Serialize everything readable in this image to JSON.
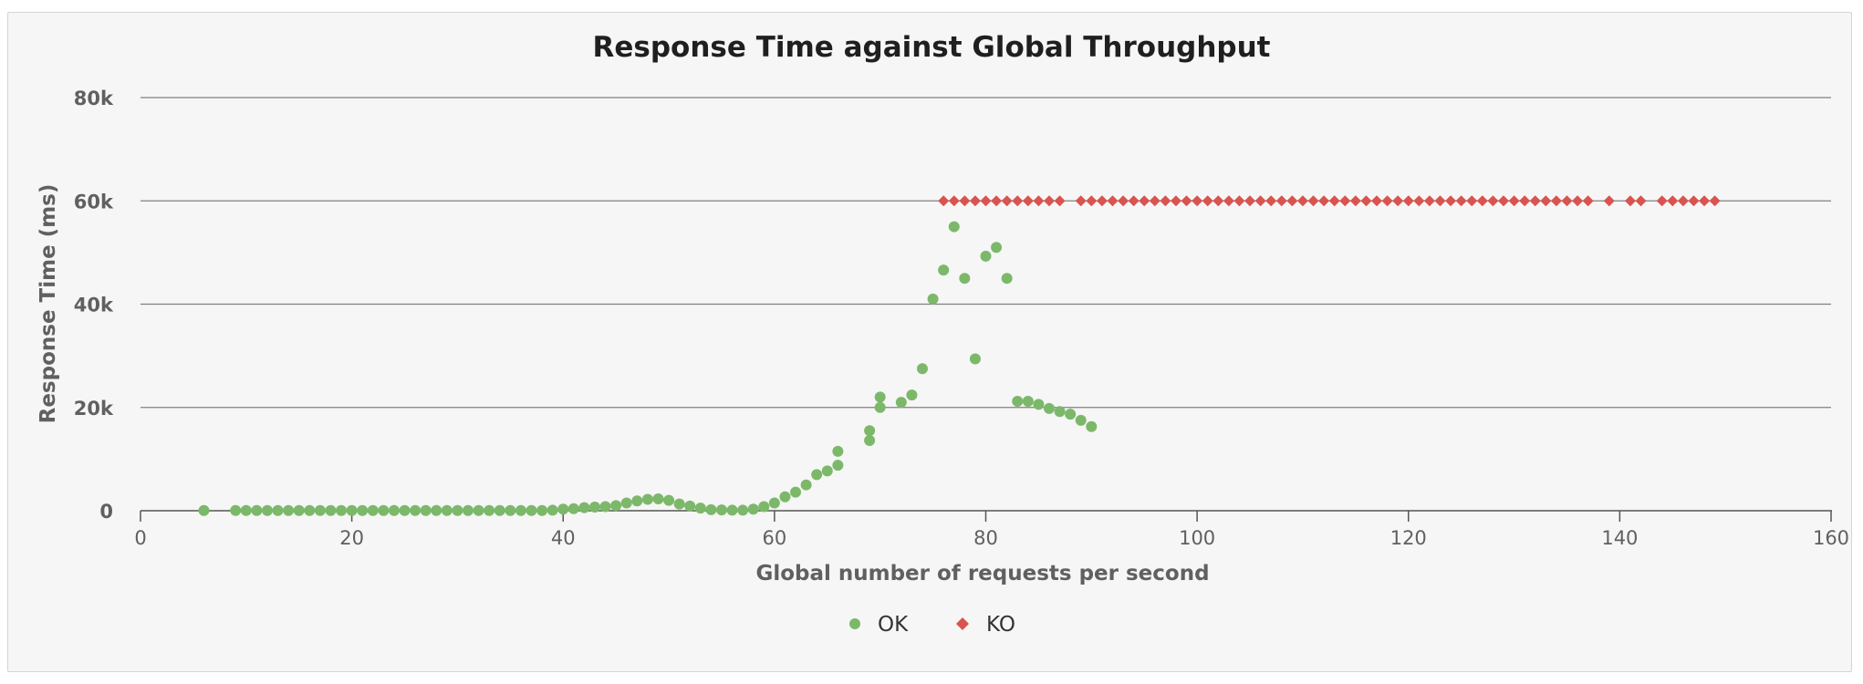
{
  "chart_data": {
    "type": "scatter",
    "title": "Response Time against Global Throughput",
    "xlabel": "Global number of requests per second",
    "ylabel": "Response Time (ms)",
    "xlim": [
      0,
      160
    ],
    "ylim": [
      0,
      80000
    ],
    "x_ticks": [
      0,
      20,
      40,
      60,
      80,
      100,
      120,
      140,
      160
    ],
    "x_tick_labels": [
      "0",
      "20",
      "40",
      "60",
      "80",
      "100",
      "120",
      "140",
      "160"
    ],
    "y_ticks": [
      0,
      20000,
      40000,
      60000,
      80000
    ],
    "y_tick_labels": [
      "0",
      "20k",
      "40k",
      "60k",
      "80k"
    ],
    "grid": "horizontal",
    "legend_position": "bottom-center",
    "colors": {
      "ok": "#7cb86a",
      "ko": "#d9534f",
      "grid": "#808080",
      "panel": "#f6f6f6"
    },
    "series": [
      {
        "name": "OK",
        "marker": "circle",
        "color": "#7cb86a",
        "points": [
          [
            6,
            50
          ],
          [
            9,
            50
          ],
          [
            10,
            50
          ],
          [
            11,
            50
          ],
          [
            12,
            50
          ],
          [
            13,
            50
          ],
          [
            14,
            50
          ],
          [
            15,
            50
          ],
          [
            16,
            50
          ],
          [
            17,
            50
          ],
          [
            18,
            50
          ],
          [
            19,
            50
          ],
          [
            20,
            50
          ],
          [
            21,
            50
          ],
          [
            22,
            50
          ],
          [
            23,
            50
          ],
          [
            24,
            50
          ],
          [
            25,
            50
          ],
          [
            26,
            50
          ],
          [
            27,
            50
          ],
          [
            28,
            50
          ],
          [
            29,
            50
          ],
          [
            30,
            50
          ],
          [
            31,
            50
          ],
          [
            32,
            50
          ],
          [
            33,
            50
          ],
          [
            34,
            50
          ],
          [
            35,
            50
          ],
          [
            36,
            50
          ],
          [
            37,
            50
          ],
          [
            38,
            50
          ],
          [
            39,
            100
          ],
          [
            40,
            300
          ],
          [
            41,
            400
          ],
          [
            42,
            600
          ],
          [
            43,
            700
          ],
          [
            44,
            800
          ],
          [
            45,
            1000
          ],
          [
            46,
            1500
          ],
          [
            47,
            1900
          ],
          [
            48,
            2200
          ],
          [
            49,
            2300
          ],
          [
            50,
            2000
          ],
          [
            51,
            1300
          ],
          [
            52,
            900
          ],
          [
            53,
            500
          ],
          [
            54,
            200
          ],
          [
            55,
            150
          ],
          [
            56,
            100
          ],
          [
            57,
            100
          ],
          [
            58,
            300
          ],
          [
            59,
            800
          ],
          [
            60,
            1500
          ],
          [
            61,
            2700
          ],
          [
            62,
            3600
          ],
          [
            63,
            5000
          ],
          [
            64,
            7000
          ],
          [
            65,
            7700
          ],
          [
            66,
            8800
          ],
          [
            66,
            11500
          ],
          [
            69,
            13600
          ],
          [
            69,
            15500
          ],
          [
            70,
            20000
          ],
          [
            70,
            22000
          ],
          [
            72,
            21000
          ],
          [
            73,
            22400
          ],
          [
            74,
            27500
          ],
          [
            75,
            41000
          ],
          [
            76,
            46600
          ],
          [
            77,
            55000
          ],
          [
            78,
            45000
          ],
          [
            79,
            29400
          ],
          [
            80,
            49300
          ],
          [
            81,
            51000
          ],
          [
            82,
            45000
          ],
          [
            83,
            21200
          ],
          [
            84,
            21200
          ],
          [
            85,
            20600
          ],
          [
            86,
            19800
          ],
          [
            87,
            19200
          ],
          [
            88,
            18700
          ],
          [
            89,
            17500
          ],
          [
            90,
            16300
          ]
        ]
      },
      {
        "name": "KO",
        "marker": "diamond",
        "color": "#d9534f",
        "points": [
          [
            76,
            60000
          ],
          [
            77,
            60000
          ],
          [
            78,
            60000
          ],
          [
            79,
            60000
          ],
          [
            80,
            60000
          ],
          [
            81,
            60000
          ],
          [
            82,
            60000
          ],
          [
            83,
            60000
          ],
          [
            84,
            60000
          ],
          [
            85,
            60000
          ],
          [
            86,
            60000
          ],
          [
            87,
            60000
          ],
          [
            89,
            60000
          ],
          [
            90,
            60000
          ],
          [
            91,
            60000
          ],
          [
            92,
            60000
          ],
          [
            93,
            60000
          ],
          [
            94,
            60000
          ],
          [
            95,
            60000
          ],
          [
            96,
            60000
          ],
          [
            97,
            60000
          ],
          [
            98,
            60000
          ],
          [
            99,
            60000
          ],
          [
            100,
            60000
          ],
          [
            101,
            60000
          ],
          [
            102,
            60000
          ],
          [
            103,
            60000
          ],
          [
            104,
            60000
          ],
          [
            105,
            60000
          ],
          [
            106,
            60000
          ],
          [
            107,
            60000
          ],
          [
            108,
            60000
          ],
          [
            109,
            60000
          ],
          [
            110,
            60000
          ],
          [
            111,
            60000
          ],
          [
            112,
            60000
          ],
          [
            113,
            60000
          ],
          [
            114,
            60000
          ],
          [
            115,
            60000
          ],
          [
            116,
            60000
          ],
          [
            117,
            60000
          ],
          [
            118,
            60000
          ],
          [
            119,
            60000
          ],
          [
            120,
            60000
          ],
          [
            121,
            60000
          ],
          [
            122,
            60000
          ],
          [
            123,
            60000
          ],
          [
            124,
            60000
          ],
          [
            125,
            60000
          ],
          [
            126,
            60000
          ],
          [
            127,
            60000
          ],
          [
            128,
            60000
          ],
          [
            129,
            60000
          ],
          [
            130,
            60000
          ],
          [
            131,
            60000
          ],
          [
            132,
            60000
          ],
          [
            133,
            60000
          ],
          [
            134,
            60000
          ],
          [
            135,
            60000
          ],
          [
            136,
            60000
          ],
          [
            137,
            60000
          ],
          [
            139,
            60000
          ],
          [
            141,
            60000
          ],
          [
            142,
            60000
          ],
          [
            144,
            60000
          ],
          [
            145,
            60000
          ],
          [
            146,
            60000
          ],
          [
            147,
            60000
          ],
          [
            148,
            60000
          ],
          [
            149,
            60000
          ]
        ]
      }
    ]
  }
}
